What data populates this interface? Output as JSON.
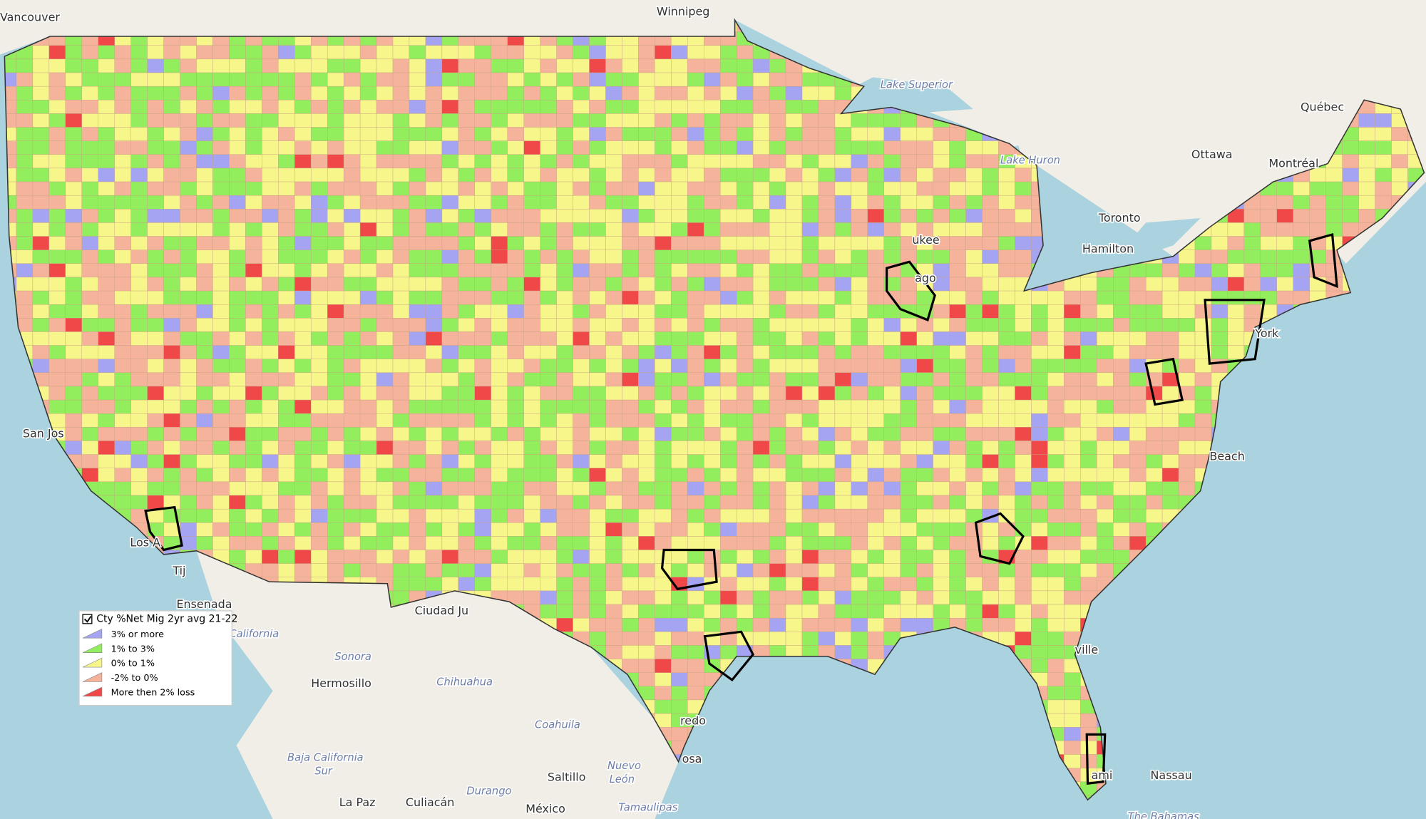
{
  "map": {
    "labels": [
      "Vancouver",
      "Winnipeg",
      "Lake Superior",
      "Québec",
      "Ottawa",
      "Montréal",
      "Lake Huron",
      "Toronto",
      "Hamilton",
      "ukee",
      "ago",
      "York",
      "Beach",
      "San Jos",
      "Los A",
      "Tij",
      "Ensenada",
      "Ciudad Ju",
      "California",
      "Sonora",
      "Hermosillo",
      "Chihuahua",
      "redo",
      "Coahuila",
      "Baja California",
      "Sur",
      "osa",
      "Nuevo",
      "León",
      "Saltillo",
      "Durango",
      "Culiacán",
      "La Paz",
      "México",
      "Tamaulipas",
      "Nassau",
      "The Bahamas",
      "ville",
      "ami"
    ],
    "legend": {
      "title": "Cty %Net Mig 2yr avg 21-22",
      "checked": true,
      "items": [
        {
          "label": "3% or more",
          "color": "#a4a4f2"
        },
        {
          "label": "1% to 3%",
          "color": "#92ee5c"
        },
        {
          "label": "0% to 1%",
          "color": "#f6f68a"
        },
        {
          "label": "-2% to 0%",
          "color": "#f6b39b"
        },
        {
          "label": "More then 2% loss",
          "color": "#f04848"
        }
      ]
    }
  }
}
